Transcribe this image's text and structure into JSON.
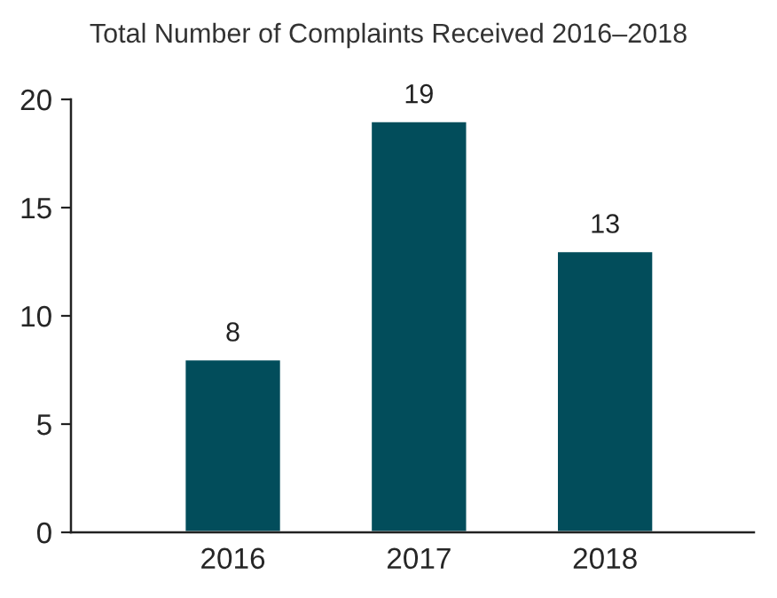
{
  "chart_data": {
    "type": "bar",
    "title": "Total Number of Complaints Received 2016–2018",
    "categories": [
      "2016",
      "2017",
      "2018"
    ],
    "values": [
      8,
      19,
      13
    ],
    "color": "#024d5b",
    "ylim": [
      0,
      20
    ],
    "yticks": [
      0,
      5,
      10,
      15,
      20
    ],
    "grid": false,
    "data_labels": true
  }
}
